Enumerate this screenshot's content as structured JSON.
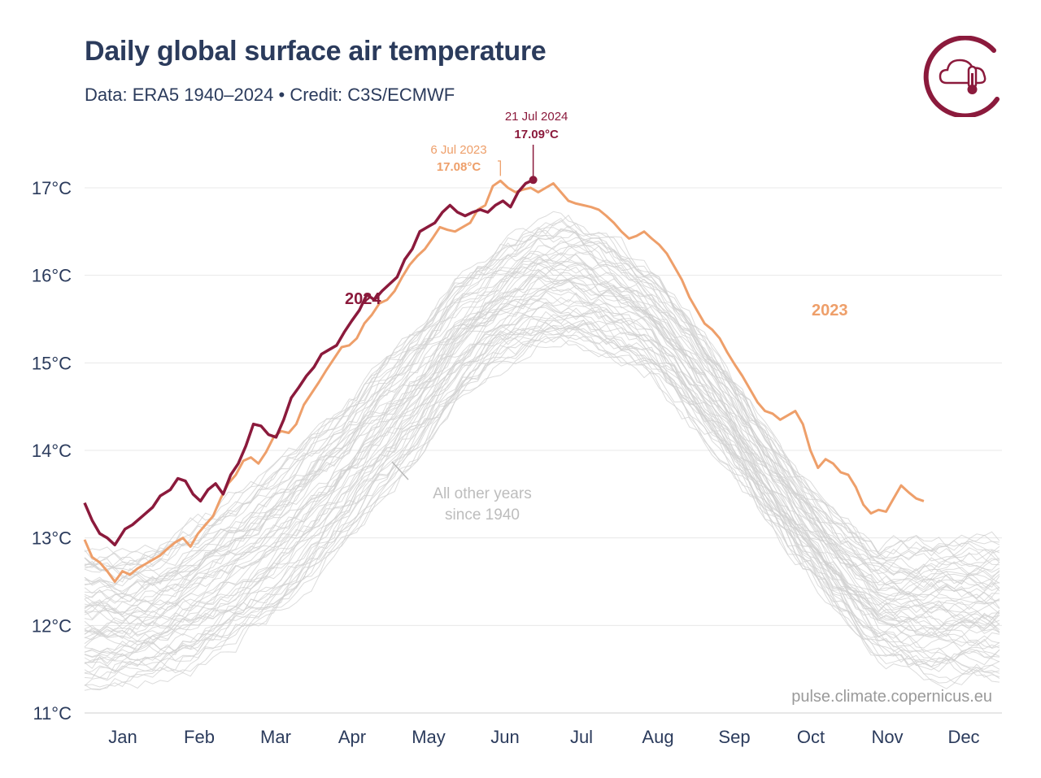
{
  "header": {
    "title": "Daily global surface air temperature",
    "subtitle": "Data: ERA5 1940–2024 • Credit: C3S/ECMWF"
  },
  "logo": {
    "icon": "cloud-thermometer-icon",
    "color": "#8b1a3c"
  },
  "credit": "pulse.climate.copernicus.eu",
  "colors": {
    "y2024": "#8b1a3c",
    "y2023": "#ee9f6a",
    "others": "#d0d0d0",
    "text": "#2b3b5c",
    "grid": "#e8e8e8",
    "annotation_grey": "#bdbdbd"
  },
  "chart_data": {
    "type": "line",
    "title": "Daily global surface air temperature",
    "xlabel": "",
    "ylabel": "",
    "x_ticks": [
      "Jan",
      "Feb",
      "Mar",
      "Apr",
      "May",
      "Jun",
      "Jul",
      "Aug",
      "Sep",
      "Oct",
      "Nov",
      "Dec"
    ],
    "y_ticks": [
      "11°C",
      "12°C",
      "13°C",
      "14°C",
      "15°C",
      "16°C",
      "17°C"
    ],
    "ylim": [
      11,
      17.2
    ],
    "xlim_day_of_year": [
      1,
      365
    ],
    "grid": true,
    "series": [
      {
        "name": "2024",
        "points": [
          [
            1,
            13.4
          ],
          [
            4,
            13.2
          ],
          [
            7,
            13.05
          ],
          [
            10,
            13.0
          ],
          [
            13,
            12.92
          ],
          [
            17,
            13.1
          ],
          [
            20,
            13.15
          ],
          [
            24,
            13.25
          ],
          [
            28,
            13.35
          ],
          [
            31,
            13.48
          ],
          [
            35,
            13.55
          ],
          [
            38,
            13.68
          ],
          [
            41,
            13.65
          ],
          [
            44,
            13.5
          ],
          [
            47,
            13.42
          ],
          [
            50,
            13.55
          ],
          [
            53,
            13.62
          ],
          [
            56,
            13.5
          ],
          [
            59,
            13.72
          ],
          [
            62,
            13.85
          ],
          [
            65,
            14.05
          ],
          [
            68,
            14.3
          ],
          [
            71,
            14.28
          ],
          [
            74,
            14.18
          ],
          [
            77,
            14.15
          ],
          [
            80,
            14.35
          ],
          [
            83,
            14.6
          ],
          [
            86,
            14.72
          ],
          [
            89,
            14.85
          ],
          [
            92,
            14.95
          ],
          [
            95,
            15.1
          ],
          [
            98,
            15.15
          ],
          [
            101,
            15.2
          ],
          [
            104,
            15.35
          ],
          [
            107,
            15.48
          ],
          [
            110,
            15.6
          ],
          [
            113,
            15.78
          ],
          [
            116,
            15.72
          ],
          [
            119,
            15.82
          ],
          [
            122,
            15.9
          ],
          [
            125,
            15.98
          ],
          [
            128,
            16.18
          ],
          [
            131,
            16.3
          ],
          [
            134,
            16.5
          ],
          [
            137,
            16.55
          ],
          [
            140,
            16.6
          ],
          [
            143,
            16.72
          ],
          [
            146,
            16.8
          ],
          [
            149,
            16.72
          ],
          [
            152,
            16.68
          ],
          [
            155,
            16.72
          ],
          [
            158,
            16.75
          ],
          [
            161,
            16.72
          ],
          [
            164,
            16.8
          ],
          [
            167,
            16.85
          ],
          [
            170,
            16.78
          ],
          [
            173,
            16.95
          ],
          [
            176,
            17.05
          ],
          [
            179,
            17.09
          ]
        ]
      },
      {
        "name": "2023",
        "points": [
          [
            1,
            12.98
          ],
          [
            4,
            12.78
          ],
          [
            7,
            12.72
          ],
          [
            10,
            12.62
          ],
          [
            13,
            12.5
          ],
          [
            16,
            12.62
          ],
          [
            19,
            12.58
          ],
          [
            22,
            12.65
          ],
          [
            25,
            12.7
          ],
          [
            28,
            12.75
          ],
          [
            31,
            12.8
          ],
          [
            34,
            12.88
          ],
          [
            37,
            12.95
          ],
          [
            40,
            13.0
          ],
          [
            43,
            12.9
          ],
          [
            46,
            13.05
          ],
          [
            49,
            13.15
          ],
          [
            52,
            13.25
          ],
          [
            55,
            13.45
          ],
          [
            58,
            13.62
          ],
          [
            61,
            13.72
          ],
          [
            64,
            13.88
          ],
          [
            67,
            13.92
          ],
          [
            70,
            13.85
          ],
          [
            73,
            13.98
          ],
          [
            76,
            14.15
          ],
          [
            79,
            14.22
          ],
          [
            82,
            14.2
          ],
          [
            85,
            14.3
          ],
          [
            88,
            14.52
          ],
          [
            91,
            14.65
          ],
          [
            94,
            14.78
          ],
          [
            97,
            14.92
          ],
          [
            100,
            15.05
          ],
          [
            103,
            15.18
          ],
          [
            106,
            15.2
          ],
          [
            109,
            15.28
          ],
          [
            112,
            15.45
          ],
          [
            115,
            15.55
          ],
          [
            118,
            15.68
          ],
          [
            121,
            15.72
          ],
          [
            124,
            15.82
          ],
          [
            127,
            15.98
          ],
          [
            130,
            16.12
          ],
          [
            133,
            16.22
          ],
          [
            136,
            16.3
          ],
          [
            139,
            16.42
          ],
          [
            142,
            16.55
          ],
          [
            145,
            16.52
          ],
          [
            148,
            16.5
          ],
          [
            151,
            16.55
          ],
          [
            154,
            16.6
          ],
          [
            157,
            16.75
          ],
          [
            160,
            16.8
          ],
          [
            163,
            17.02
          ],
          [
            166,
            17.08
          ],
          [
            169,
            17.0
          ],
          [
            172,
            16.95
          ],
          [
            175,
            16.98
          ],
          [
            178,
            17.0
          ],
          [
            181,
            16.95
          ],
          [
            184,
            17.0
          ],
          [
            187,
            17.05
          ],
          [
            190,
            16.95
          ],
          [
            193,
            16.85
          ],
          [
            196,
            16.82
          ],
          [
            199,
            16.8
          ],
          [
            202,
            16.78
          ],
          [
            205,
            16.75
          ],
          [
            208,
            16.68
          ],
          [
            211,
            16.6
          ],
          [
            214,
            16.5
          ],
          [
            217,
            16.42
          ],
          [
            220,
            16.45
          ],
          [
            223,
            16.5
          ],
          [
            226,
            16.42
          ],
          [
            229,
            16.35
          ],
          [
            232,
            16.25
          ],
          [
            235,
            16.1
          ],
          [
            238,
            15.95
          ],
          [
            241,
            15.75
          ],
          [
            244,
            15.6
          ],
          [
            247,
            15.45
          ],
          [
            250,
            15.38
          ],
          [
            253,
            15.28
          ],
          [
            256,
            15.12
          ],
          [
            259,
            14.98
          ],
          [
            262,
            14.85
          ],
          [
            265,
            14.7
          ],
          [
            268,
            14.55
          ],
          [
            271,
            14.45
          ],
          [
            274,
            14.42
          ],
          [
            277,
            14.35
          ],
          [
            280,
            14.4
          ],
          [
            283,
            14.45
          ],
          [
            286,
            14.3
          ],
          [
            289,
            14.0
          ],
          [
            292,
            13.8
          ],
          [
            295,
            13.9
          ],
          [
            298,
            13.85
          ],
          [
            301,
            13.75
          ],
          [
            304,
            13.72
          ],
          [
            307,
            13.58
          ],
          [
            310,
            13.38
          ],
          [
            313,
            13.28
          ],
          [
            316,
            13.32
          ],
          [
            319,
            13.3
          ],
          [
            322,
            13.45
          ],
          [
            325,
            13.6
          ],
          [
            328,
            13.52
          ],
          [
            331,
            13.45
          ],
          [
            334,
            13.42
          ]
        ]
      }
    ],
    "other_years_label": "All other years since 1940",
    "other_years_band": {
      "description_days": [
        1,
        15,
        30,
        45,
        60,
        75,
        90,
        105,
        120,
        135,
        150,
        165,
        180,
        195,
        210,
        225,
        240,
        255,
        270,
        285,
        300,
        315,
        334
      ],
      "min": [
        11.3,
        11.4,
        11.45,
        11.55,
        11.8,
        12.1,
        12.5,
        13.0,
        13.5,
        14.0,
        14.6,
        15.0,
        15.15,
        15.2,
        15.1,
        14.9,
        14.4,
        13.9,
        13.3,
        12.7,
        12.2,
        11.7,
        11.45
      ],
      "max": [
        13.0,
        12.9,
        13.0,
        13.3,
        13.6,
        13.9,
        14.3,
        14.7,
        15.2,
        15.6,
        16.1,
        16.4,
        16.7,
        16.75,
        16.5,
        16.2,
        15.7,
        15.1,
        14.4,
        13.8,
        13.3,
        13.0,
        13.1
      ]
    },
    "annotations": [
      {
        "date": "21 Jul 2024",
        "value_label": "17.09°C",
        "series": "2024"
      },
      {
        "date": "6 Jul 2023",
        "value_label": "17.08°C",
        "series": "2023"
      }
    ]
  }
}
